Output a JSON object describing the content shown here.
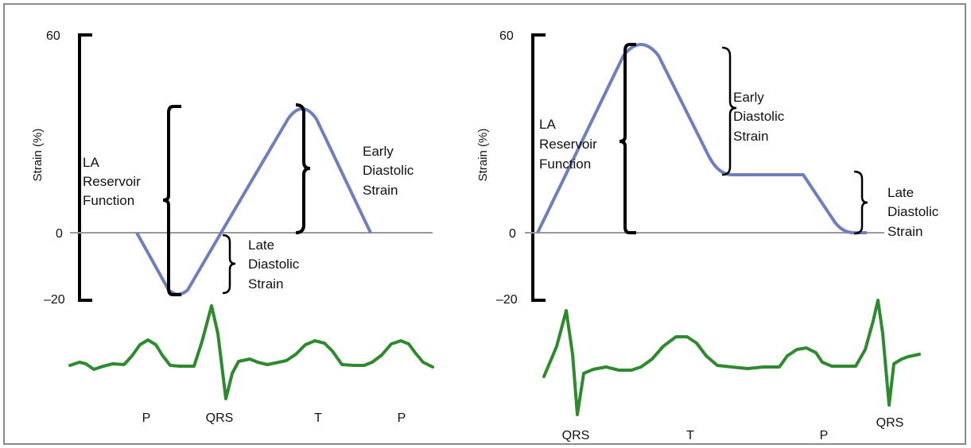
{
  "colors": {
    "strain_curve": "#6f7fbd",
    "ecg_trace": "#2d8a2d",
    "axis": "#999999",
    "bracket": "#000000"
  },
  "panels": [
    {
      "y_axis_title": "Strain (%)",
      "y_ticks": [
        "60",
        "0",
        "–20"
      ],
      "labels": {
        "reservoir": [
          "LA",
          "Reservoir",
          "Function"
        ],
        "late": [
          "Late",
          "Diastolic",
          "Strain"
        ],
        "early": [
          "Early",
          "Diastolic",
          "Strain"
        ]
      },
      "ecg_waves": [
        "P",
        "QRS",
        "T",
        "P"
      ]
    },
    {
      "y_axis_title": "Strain (%)",
      "y_ticks": [
        "60",
        "0",
        "–20"
      ],
      "labels": {
        "reservoir": [
          "LA",
          "Reservoir",
          "Function"
        ],
        "early": [
          "Early",
          "Diastolic",
          "Strain"
        ],
        "late": [
          "Late",
          "Diastolic",
          "Strain"
        ]
      },
      "ecg_waves": [
        "QRS",
        "T",
        "P",
        "QRS"
      ]
    }
  ]
}
